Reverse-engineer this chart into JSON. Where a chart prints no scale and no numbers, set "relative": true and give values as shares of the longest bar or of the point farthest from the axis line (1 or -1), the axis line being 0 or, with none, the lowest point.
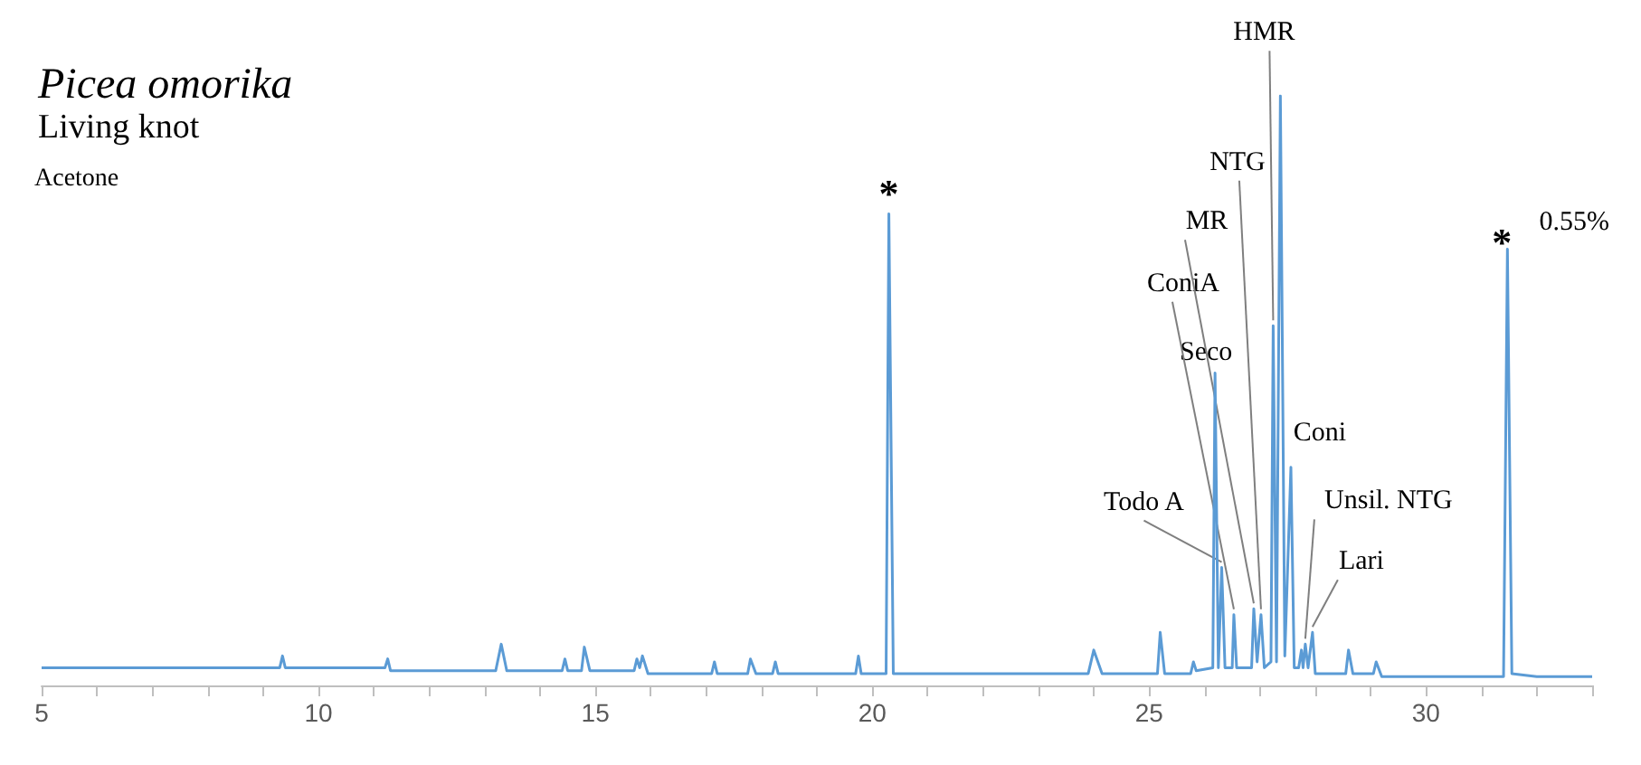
{
  "chart_data": {
    "type": "line",
    "title": "Picea omorika",
    "subtitle": "Living knot",
    "relative": true,
    "color": "#5b9bd5",
    "marker": "none",
    "line_style": "solid",
    "xlim": [
      5,
      33
    ],
    "xticks": [
      5,
      {
        "value": 6,
        "label": null
      },
      {
        "value": 7,
        "label": null
      },
      {
        "value": 8,
        "label": null
      },
      {
        "value": 9,
        "label": null
      },
      10,
      {
        "value": 11,
        "label": null
      },
      {
        "value": 12,
        "label": null
      },
      {
        "value": 13,
        "label": null
      },
      {
        "value": 14,
        "label": null
      },
      15,
      {
        "value": 16,
        "label": null
      },
      {
        "value": 17,
        "label": null
      },
      {
        "value": 18,
        "label": null
      },
      {
        "value": 19,
        "label": null
      },
      20,
      {
        "value": 21,
        "label": null
      },
      {
        "value": 22,
        "label": null
      },
      {
        "value": 23,
        "label": null
      },
      {
        "value": 24,
        "label": null
      },
      25,
      {
        "value": 26,
        "label": null
      },
      {
        "value": 27,
        "label": null
      },
      {
        "value": 28,
        "label": null
      },
      {
        "value": 29,
        "label": null
      },
      30,
      {
        "value": 31,
        "label": null
      },
      {
        "value": 32,
        "label": null
      },
      {
        "value": 33,
        "label": null
      }
    ],
    "x": [
      5,
      7,
      9.3,
      9.35,
      9.4,
      11.2,
      11.25,
      11.3,
      13.2,
      13.3,
      13.4,
      14.4,
      14.45,
      14.5,
      14.75,
      14.8,
      14.9,
      15.7,
      15.75,
      15.8,
      15.85,
      15.95,
      17.1,
      17.15,
      17.2,
      17.75,
      17.8,
      17.9,
      18.2,
      18.25,
      18.3,
      19.7,
      19.75,
      19.8,
      20.25,
      20.3,
      20.38,
      23.9,
      24.0,
      24.15,
      25.15,
      25.2,
      25.28,
      25.75,
      25.8,
      25.85,
      26.15,
      26.19,
      26.25,
      26.31,
      26.37,
      26.5,
      26.53,
      26.58,
      26.85,
      26.89,
      26.95,
      27.02,
      27.08,
      27.2,
      27.24,
      27.3,
      27.37,
      27.45,
      27.56,
      27.62,
      27.7,
      27.75,
      27.78,
      27.82,
      27.87,
      27.95,
      28.0,
      28.55,
      28.6,
      28.68,
      29.05,
      29.1,
      29.2,
      31.4,
      31.47,
      31.55,
      32,
      33
    ],
    "values": [
      0.03,
      0.03,
      0.03,
      0.05,
      0.03,
      0.03,
      0.045,
      0.025,
      0.025,
      0.07,
      0.025,
      0.025,
      0.045,
      0.025,
      0.025,
      0.065,
      0.025,
      0.025,
      0.045,
      0.03,
      0.05,
      0.02,
      0.02,
      0.04,
      0.02,
      0.02,
      0.045,
      0.02,
      0.02,
      0.04,
      0.02,
      0.02,
      0.05,
      0.02,
      0.02,
      0.8,
      0.02,
      0.02,
      0.06,
      0.02,
      0.02,
      0.09,
      0.02,
      0.02,
      0.04,
      0.025,
      0.03,
      0.53,
      0.03,
      0.2,
      0.03,
      0.03,
      0.12,
      0.03,
      0.03,
      0.13,
      0.04,
      0.12,
      0.03,
      0.04,
      0.61,
      0.04,
      1.0,
      0.05,
      0.37,
      0.03,
      0.03,
      0.06,
      0.03,
      0.07,
      0.03,
      0.09,
      0.02,
      0.02,
      0.06,
      0.02,
      0.02,
      0.04,
      0.015,
      0.015,
      0.74,
      0.02,
      0.015,
      0.015
    ],
    "annotations": [
      "Acetone",
      {
        "text": "*",
        "x": 20.3,
        "y": 0.8
      },
      {
        "text": "Todo A",
        "x": 26.31,
        "y": 0.2
      },
      {
        "text": "Seco",
        "x": 26.19,
        "y": 0.53
      },
      {
        "text": "ConiA",
        "x": 26.53,
        "y": 0.12
      },
      {
        "text": "MR",
        "x": 26.89,
        "y": 0.13
      },
      {
        "text": "NTG",
        "x": 27.02,
        "y": 0.12
      },
      {
        "text": "HMR",
        "x": 27.24,
        "y": 0.61
      },
      {
        "text": "Coni",
        "x": 27.56,
        "y": 0.37
      },
      {
        "text": "Unsil. NTG",
        "x": 27.82,
        "y": 0.07
      },
      {
        "text": "Lari",
        "x": 27.95,
        "y": 0.09
      },
      {
        "text": "*",
        "x": 31.47,
        "y": 0.74
      },
      {
        "text": "0.55%",
        "x": 31.47,
        "y": 0.74
      }
    ]
  }
}
